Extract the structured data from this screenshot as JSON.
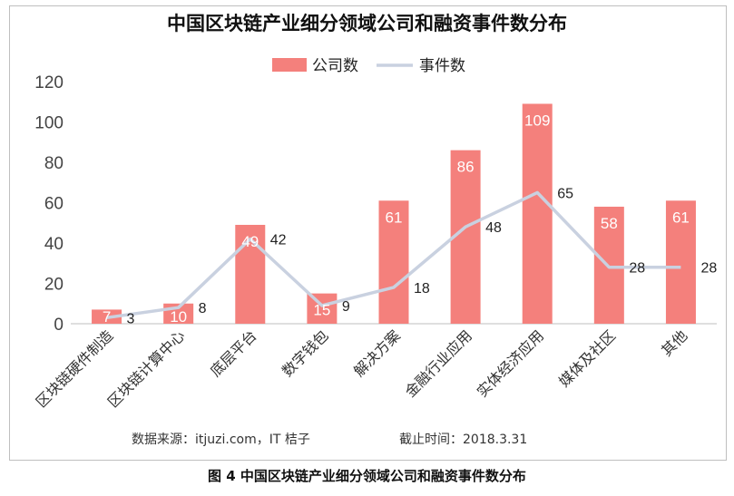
{
  "chart_data": {
    "type": "bar",
    "title": "中国区块链产业细分领域公司和融资事件数分布",
    "categories": [
      "区块链硬件制造",
      "区块链计算中心",
      "底层平台",
      "数字钱包",
      "解决方案",
      "金融行业应用",
      "实体经济应用",
      "媒体及社区",
      "其他"
    ],
    "series": [
      {
        "name": "公司数",
        "kind": "bar",
        "values": [
          7,
          10,
          49,
          15,
          61,
          86,
          109,
          58,
          61
        ],
        "color": "#f4807c"
      },
      {
        "name": "事件数",
        "kind": "line",
        "values": [
          3,
          8,
          42,
          9,
          18,
          48,
          65,
          28,
          28
        ],
        "color": "#c9d1e0"
      }
    ],
    "ylim": [
      0,
      120
    ],
    "yticks": [
      0,
      20,
      40,
      60,
      80,
      100,
      120
    ],
    "legend_position": "top-center",
    "grid": false
  },
  "footer": {
    "source": "数据来源：itjuzi.com，IT 桔子",
    "date": "截止时间：2018.3.31"
  },
  "caption": "图 4 中国区块链产业细分领域公司和融资事件数分布"
}
